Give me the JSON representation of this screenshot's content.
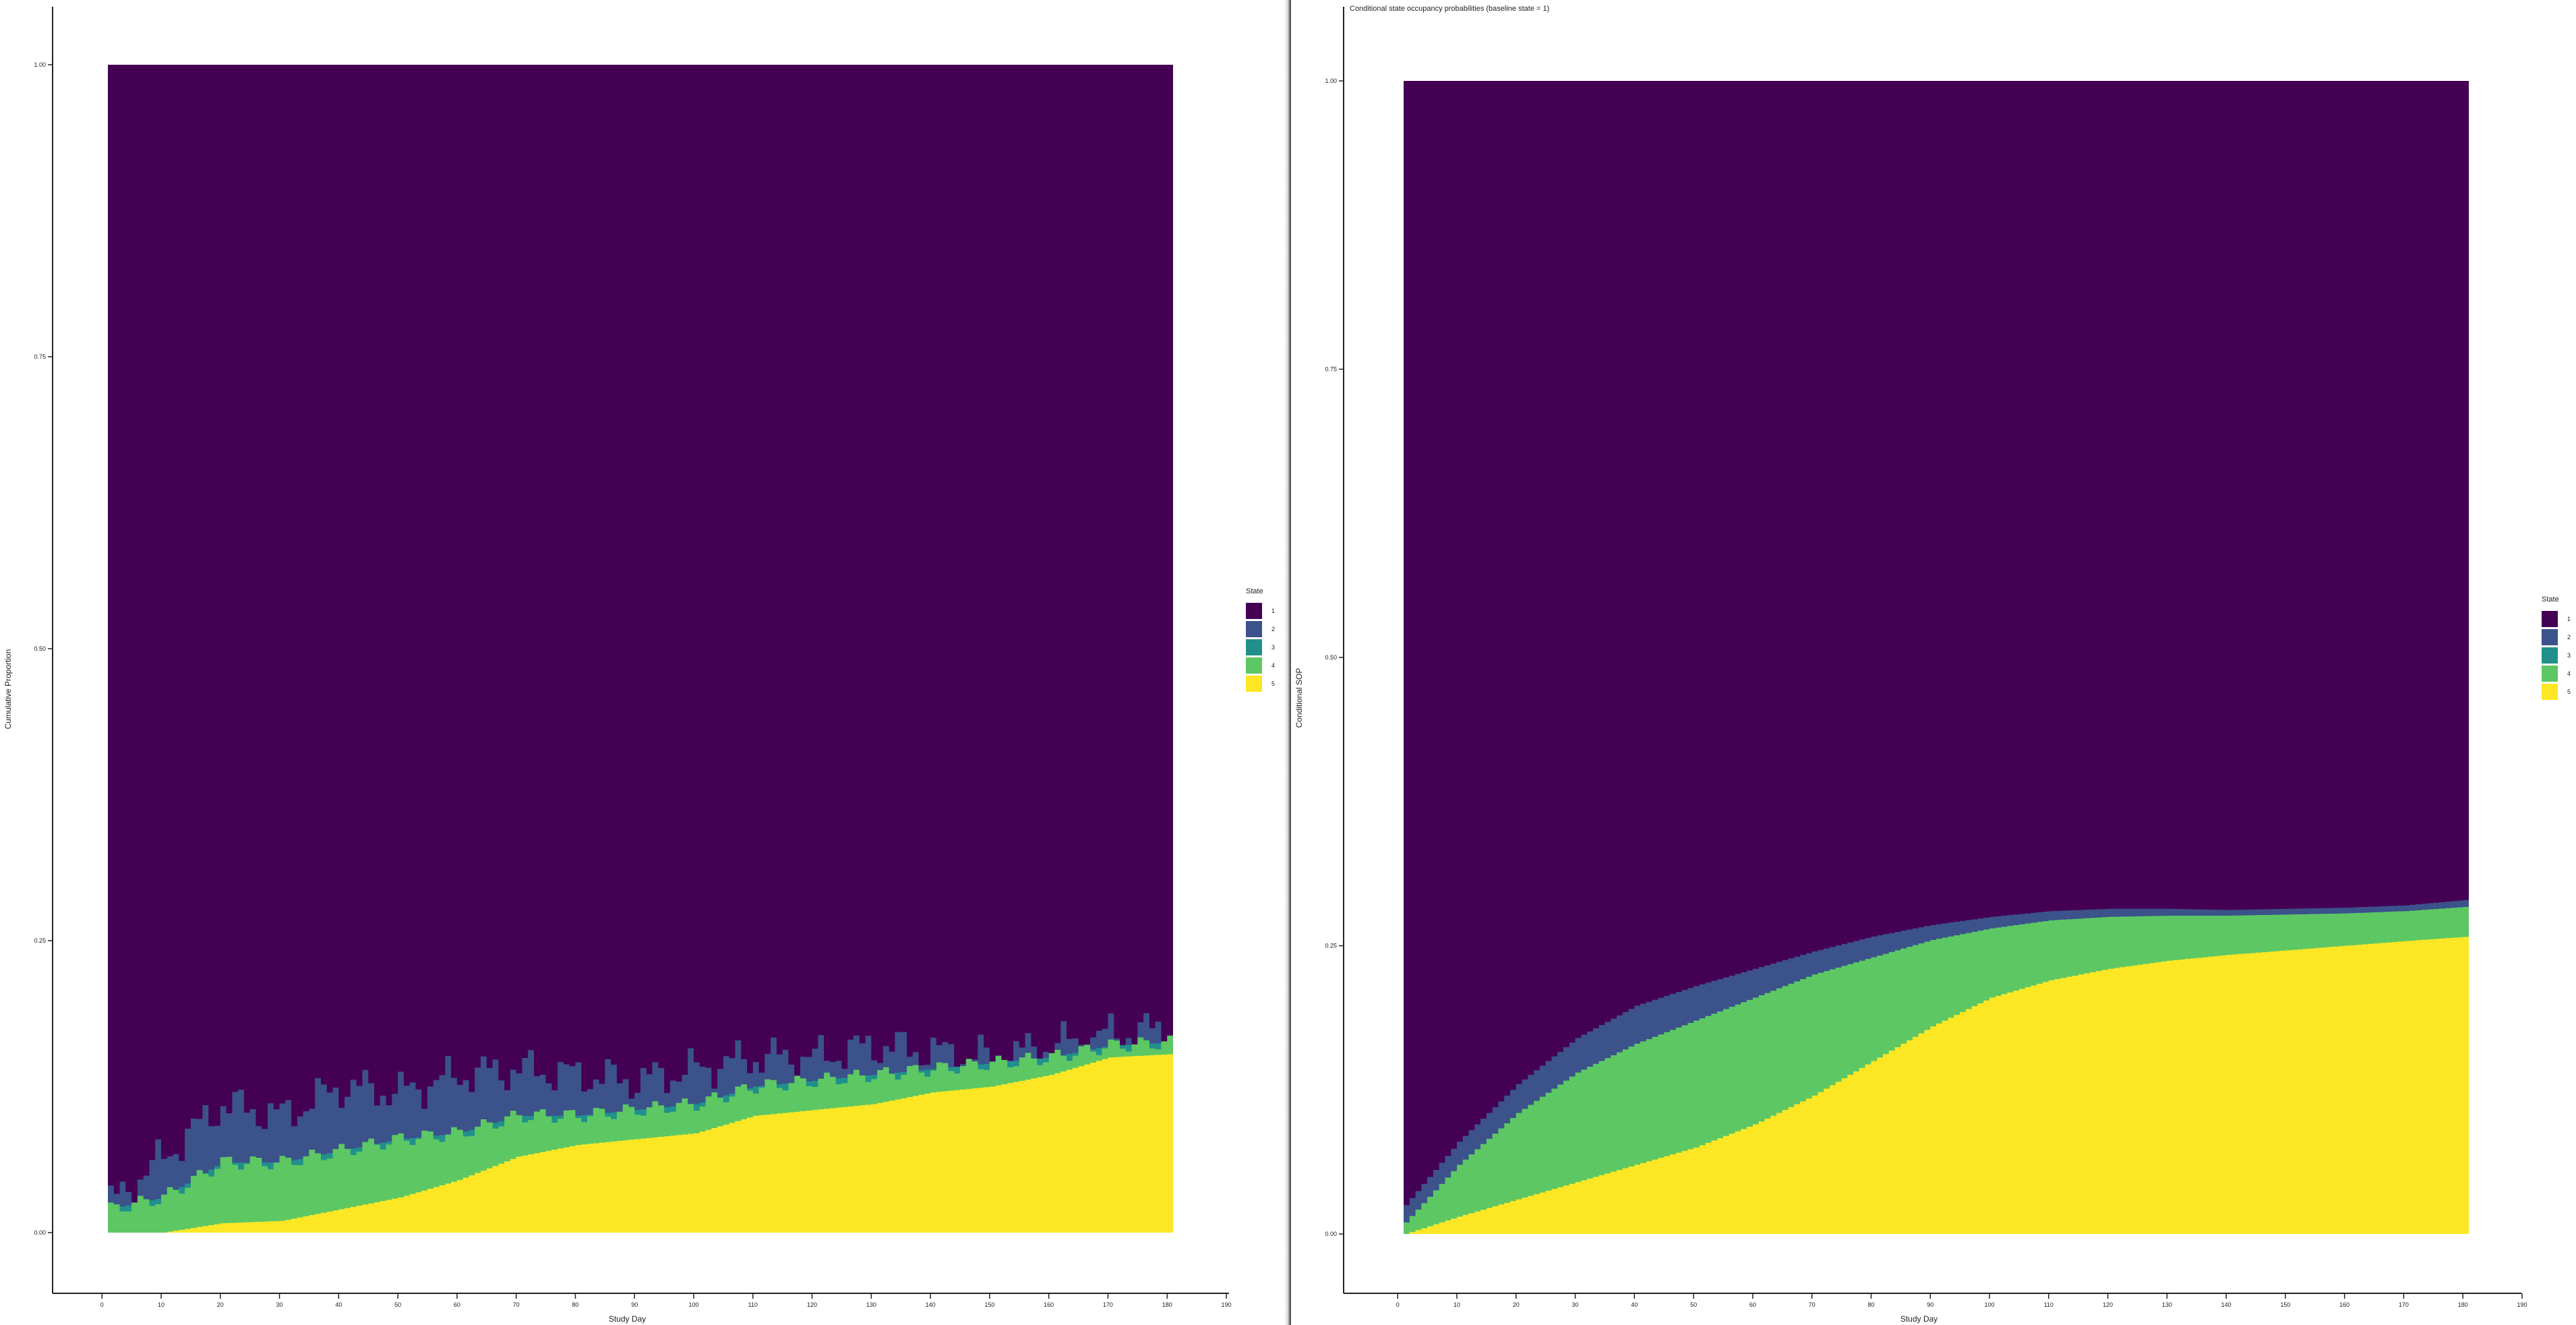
{
  "chart_data": [
    {
      "type": "area",
      "panel": "left",
      "title": "",
      "xlabel": "Study Day",
      "ylabel": "Cumulative Proportion",
      "xlim": [
        -8,
        192
      ],
      "ylim": [
        0,
        1
      ],
      "x_ticks": [
        0,
        10,
        20,
        30,
        40,
        50,
        60,
        70,
        80,
        90,
        100,
        110,
        120,
        130,
        140,
        150,
        160,
        170,
        180,
        190
      ],
      "y_ticks": [
        0.0,
        0.25,
        0.5,
        0.75,
        1.0
      ],
      "y_tick_labels": [
        "0.00",
        "0.25",
        "0.50",
        "0.75",
        "1.00"
      ],
      "step": true,
      "legend": {
        "title": "State",
        "position": "right",
        "entries": [
          "1",
          "2",
          "3",
          "4",
          "5"
        ],
        "colors": [
          "#440154",
          "#3B528B",
          "#21908C",
          "#5DC863",
          "#FDE725"
        ]
      },
      "x": [
        1,
        10,
        20,
        30,
        40,
        50,
        60,
        70,
        80,
        90,
        100,
        110,
        120,
        130,
        140,
        150,
        160,
        170,
        181
      ],
      "series_top": [
        {
          "state": "5",
          "values": [
            0.0,
            0.0,
            0.008,
            0.01,
            0.02,
            0.03,
            0.045,
            0.065,
            0.075,
            0.08,
            0.085,
            0.1,
            0.105,
            0.11,
            0.12,
            0.125,
            0.135,
            0.15,
            0.153
          ]
        },
        {
          "state": "4",
          "values": [
            0.02,
            0.03,
            0.06,
            0.06,
            0.07,
            0.08,
            0.085,
            0.1,
            0.1,
            0.105,
            0.11,
            0.125,
            0.13,
            0.135,
            0.14,
            0.145,
            0.15,
            0.16,
            0.163
          ]
        },
        {
          "state": "3",
          "values": [
            0.02,
            0.03,
            0.06,
            0.06,
            0.07,
            0.08,
            0.085,
            0.1,
            0.1,
            0.105,
            0.11,
            0.125,
            0.13,
            0.135,
            0.14,
            0.145,
            0.15,
            0.16,
            0.163
          ]
        },
        {
          "state": "2",
          "values": [
            0.025,
            0.065,
            0.11,
            0.1,
            0.125,
            0.12,
            0.135,
            0.14,
            0.135,
            0.13,
            0.14,
            0.15,
            0.15,
            0.16,
            0.155,
            0.15,
            0.16,
            0.17,
            0.175
          ]
        },
        {
          "state": "1",
          "values": [
            1,
            1,
            1,
            1,
            1,
            1,
            1,
            1,
            1,
            1,
            1,
            1,
            1,
            1,
            1,
            1,
            1,
            1,
            1
          ]
        }
      ]
    },
    {
      "type": "area",
      "panel": "right",
      "title": "Conditional state occupancy probabilities (baseline state = 1)",
      "xlabel": "Study Day",
      "ylabel": "Conditional SOP",
      "xlim": [
        -8,
        192
      ],
      "ylim": [
        0,
        1
      ],
      "x_ticks": [
        0,
        10,
        20,
        30,
        40,
        50,
        60,
        70,
        80,
        90,
        100,
        110,
        120,
        130,
        140,
        150,
        160,
        170,
        180,
        190
      ],
      "y_ticks": [
        0.0,
        0.25,
        0.5,
        0.75,
        1.0
      ],
      "y_tick_labels": [
        "0.00",
        "0.25",
        "0.50",
        "0.75",
        "1.00"
      ],
      "step": true,
      "legend": {
        "title": "State",
        "position": "right",
        "entries": [
          "1",
          "2",
          "3",
          "4",
          "5"
        ],
        "colors": [
          "#440154",
          "#3B528B",
          "#21908C",
          "#5DC863",
          "#FDE725"
        ]
      },
      "x": [
        1,
        10,
        20,
        30,
        40,
        50,
        60,
        70,
        80,
        90,
        100,
        110,
        120,
        130,
        140,
        150,
        160,
        170,
        181
      ],
      "series_top": [
        {
          "state": "5",
          "values": [
            0.0,
            0.015,
            0.03,
            0.045,
            0.06,
            0.075,
            0.095,
            0.12,
            0.15,
            0.18,
            0.205,
            0.22,
            0.23,
            0.237,
            0.242,
            0.246,
            0.25,
            0.254,
            0.258
          ]
        },
        {
          "state": "4",
          "values": [
            0.01,
            0.06,
            0.105,
            0.14,
            0.165,
            0.185,
            0.205,
            0.225,
            0.24,
            0.255,
            0.265,
            0.272,
            0.275,
            0.276,
            0.276,
            0.277,
            0.278,
            0.28,
            0.284
          ]
        },
        {
          "state": "3",
          "values": [
            0.01,
            0.06,
            0.105,
            0.14,
            0.165,
            0.185,
            0.205,
            0.225,
            0.24,
            0.255,
            0.265,
            0.272,
            0.275,
            0.276,
            0.276,
            0.277,
            0.278,
            0.28,
            0.284
          ]
        },
        {
          "state": "2",
          "values": [
            0.025,
            0.08,
            0.13,
            0.17,
            0.198,
            0.215,
            0.23,
            0.245,
            0.258,
            0.268,
            0.275,
            0.28,
            0.282,
            0.282,
            0.281,
            0.282,
            0.283,
            0.285,
            0.29
          ]
        },
        {
          "state": "1",
          "values": [
            1,
            1,
            1,
            1,
            1,
            1,
            1,
            1,
            1,
            1,
            1,
            1,
            1,
            1,
            1,
            1,
            1,
            1,
            1
          ]
        }
      ]
    }
  ]
}
